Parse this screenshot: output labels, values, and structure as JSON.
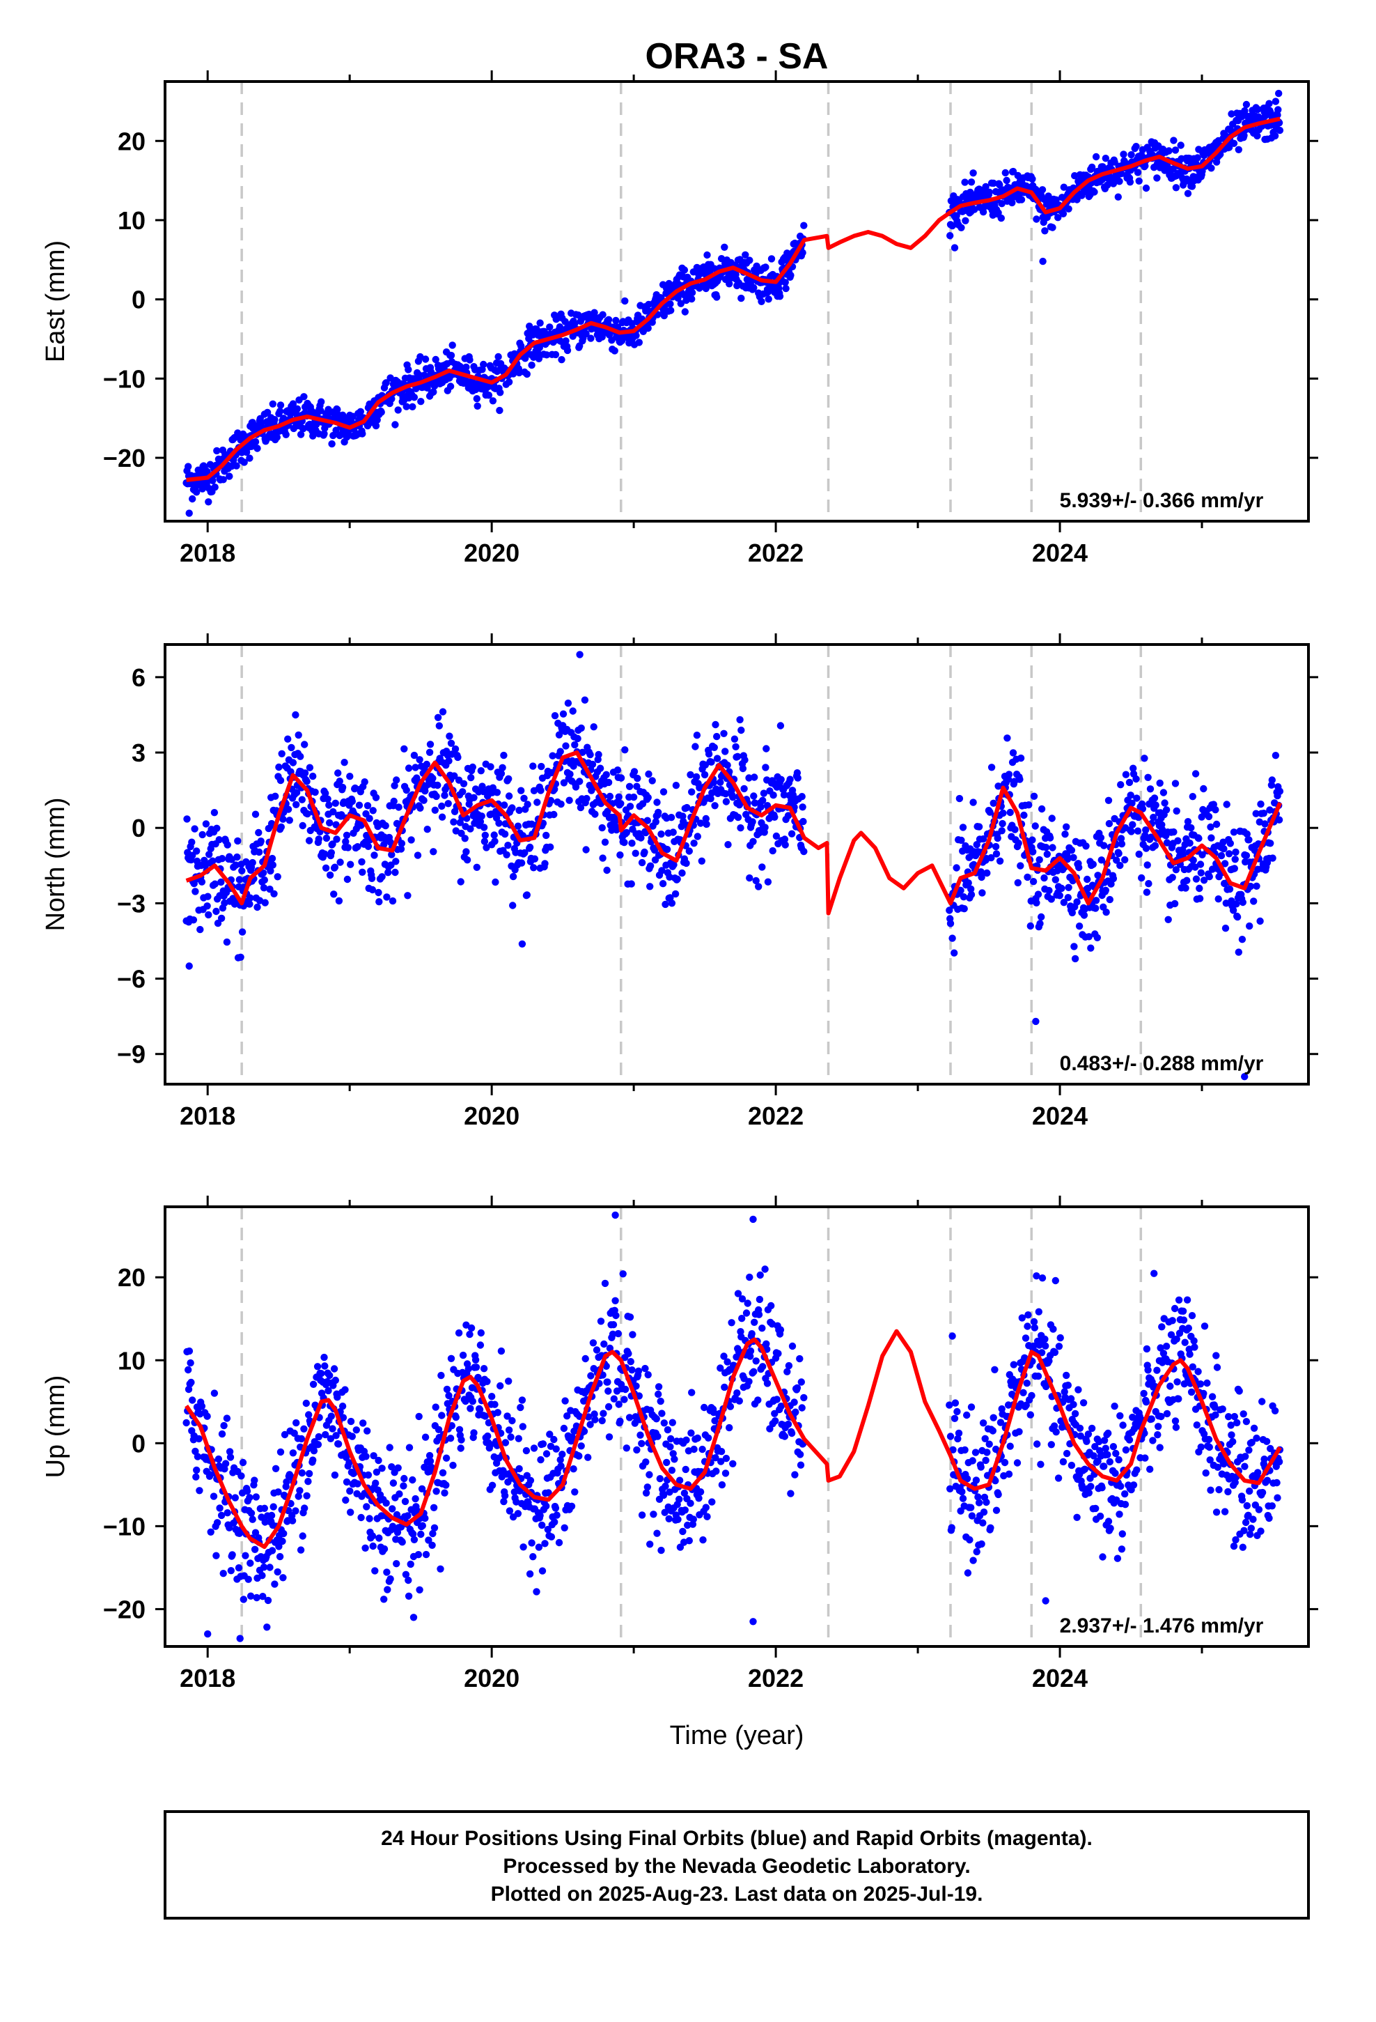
{
  "title": "ORA3 - SA",
  "xlabel": "Time (year)",
  "footer": [
    "24 Hour Positions Using Final Orbits (blue) and Rapid Orbits (magenta).",
    "Processed by the Nevada Geodetic Laboratory.",
    "Plotted on 2025-Aug-23. Last data on 2025-Jul-19."
  ],
  "colors": {
    "points": "#0000ff",
    "model": "#ff0000",
    "steps": "#c8c8c8",
    "axis": "#000000"
  },
  "chart_data": [
    {
      "type": "scatter",
      "ylabel": "East (mm)",
      "rate_label": "5.939+/- 0.366 mm/yr",
      "xlim": [
        2017.7,
        2025.75
      ],
      "ylim": [
        -28,
        27.5
      ],
      "xticks": [
        2018,
        2020,
        2022,
        2024
      ],
      "yticks": [
        -20,
        -10,
        0,
        10,
        20
      ],
      "grid": false,
      "step_epochs": [
        2018.24,
        2020.91,
        2022.37,
        2023.23,
        2023.8,
        2024.57
      ],
      "data_span": [
        2017.85,
        2025.55
      ],
      "gap": [
        2022.2,
        2023.22
      ],
      "model": [
        [
          2017.85,
          -22.8
        ],
        [
          2018.0,
          -22.5
        ],
        [
          2018.1,
          -21.0
        ],
        [
          2018.2,
          -19.0
        ],
        [
          2018.3,
          -17.5
        ],
        [
          2018.4,
          -16.5
        ],
        [
          2018.5,
          -16.0
        ],
        [
          2018.6,
          -15.2
        ],
        [
          2018.7,
          -14.8
        ],
        [
          2018.8,
          -15.2
        ],
        [
          2018.9,
          -15.6
        ],
        [
          2019.0,
          -16.2
        ],
        [
          2019.1,
          -15.4
        ],
        [
          2019.2,
          -13.0
        ],
        [
          2019.3,
          -11.8
        ],
        [
          2019.4,
          -11.0
        ],
        [
          2019.5,
          -10.5
        ],
        [
          2019.6,
          -9.8
        ],
        [
          2019.7,
          -9.0
        ],
        [
          2019.8,
          -9.5
        ],
        [
          2019.9,
          -10.0
        ],
        [
          2020.0,
          -10.5
        ],
        [
          2020.1,
          -9.5
        ],
        [
          2020.2,
          -7.0
        ],
        [
          2020.3,
          -5.5
        ],
        [
          2020.4,
          -5.0
        ],
        [
          2020.5,
          -4.5
        ],
        [
          2020.6,
          -3.8
        ],
        [
          2020.7,
          -3.0
        ],
        [
          2020.8,
          -3.5
        ],
        [
          2020.9,
          -4.2
        ],
        [
          2021.0,
          -4.0
        ],
        [
          2021.1,
          -2.5
        ],
        [
          2021.2,
          -0.5
        ],
        [
          2021.3,
          1.0
        ],
        [
          2021.4,
          2.0
        ],
        [
          2021.5,
          2.5
        ],
        [
          2021.6,
          3.5
        ],
        [
          2021.7,
          4.0
        ],
        [
          2021.8,
          3.2
        ],
        [
          2021.9,
          2.4
        ],
        [
          2022.0,
          2.2
        ],
        [
          2022.1,
          4.5
        ],
        [
          2022.2,
          7.5
        ],
        [
          2022.36,
          8.0
        ],
        [
          2022.37,
          6.5
        ],
        [
          2022.45,
          7.2
        ],
        [
          2022.55,
          8.0
        ],
        [
          2022.65,
          8.5
        ],
        [
          2022.75,
          8.0
        ],
        [
          2022.85,
          7.0
        ],
        [
          2022.95,
          6.5
        ],
        [
          2023.05,
          8.0
        ],
        [
          2023.15,
          10.0
        ],
        [
          2023.23,
          11.0
        ],
        [
          2023.3,
          11.8
        ],
        [
          2023.4,
          12.2
        ],
        [
          2023.5,
          12.5
        ],
        [
          2023.6,
          13.0
        ],
        [
          2023.7,
          14.0
        ],
        [
          2023.8,
          13.5
        ],
        [
          2023.9,
          11.0
        ],
        [
          2024.0,
          11.5
        ],
        [
          2024.1,
          13.5
        ],
        [
          2024.2,
          15.0
        ],
        [
          2024.3,
          15.8
        ],
        [
          2024.4,
          16.3
        ],
        [
          2024.5,
          16.8
        ],
        [
          2024.6,
          17.5
        ],
        [
          2024.7,
          18.0
        ],
        [
          2024.8,
          17.2
        ],
        [
          2024.9,
          16.5
        ],
        [
          2025.0,
          16.8
        ],
        [
          2025.1,
          18.5
        ],
        [
          2025.2,
          20.5
        ],
        [
          2025.3,
          21.7
        ],
        [
          2025.4,
          22.2
        ],
        [
          2025.55,
          22.8
        ]
      ],
      "noise": 1.2,
      "outliers": [
        [
          2017.87,
          -27.0
        ],
        [
          2023.88,
          4.8
        ],
        [
          2025.54,
          26.0
        ]
      ]
    },
    {
      "type": "scatter",
      "ylabel": "North (mm)",
      "rate_label": "0.483+/- 0.288 mm/yr",
      "xlim": [
        2017.7,
        2025.75
      ],
      "ylim": [
        -10.2,
        7.3
      ],
      "xticks": [
        2018,
        2020,
        2022,
        2024
      ],
      "yticks": [
        -9,
        -6,
        -3,
        0,
        3,
        6
      ],
      "grid": false,
      "step_epochs": [
        2018.24,
        2020.91,
        2022.37,
        2023.23,
        2023.8,
        2024.57
      ],
      "data_span": [
        2017.85,
        2025.55
      ],
      "gap": [
        2022.2,
        2023.22
      ],
      "model": [
        [
          2017.85,
          -2.1
        ],
        [
          2017.95,
          -1.9
        ],
        [
          2018.05,
          -1.5
        ],
        [
          2018.15,
          -2.2
        ],
        [
          2018.24,
          -3.0
        ],
        [
          2018.3,
          -2.0
        ],
        [
          2018.4,
          -1.5
        ],
        [
          2018.5,
          0.5
        ],
        [
          2018.6,
          2.1
        ],
        [
          2018.7,
          1.5
        ],
        [
          2018.8,
          0.0
        ],
        [
          2018.9,
          -0.2
        ],
        [
          2019.0,
          0.5
        ],
        [
          2019.1,
          0.3
        ],
        [
          2019.2,
          -0.8
        ],
        [
          2019.3,
          -0.9
        ],
        [
          2019.4,
          0.5
        ],
        [
          2019.5,
          1.8
        ],
        [
          2019.6,
          2.6
        ],
        [
          2019.7,
          1.8
        ],
        [
          2019.8,
          0.5
        ],
        [
          2019.9,
          0.9
        ],
        [
          2020.0,
          1.1
        ],
        [
          2020.1,
          0.5
        ],
        [
          2020.2,
          -0.5
        ],
        [
          2020.3,
          -0.4
        ],
        [
          2020.4,
          1.4
        ],
        [
          2020.5,
          2.8
        ],
        [
          2020.6,
          3.0
        ],
        [
          2020.7,
          2.0
        ],
        [
          2020.8,
          1.0
        ],
        [
          2020.9,
          0.5
        ],
        [
          2020.91,
          -0.1
        ],
        [
          2021.0,
          0.5
        ],
        [
          2021.1,
          0.0
        ],
        [
          2021.2,
          -1.0
        ],
        [
          2021.3,
          -1.3
        ],
        [
          2021.4,
          0.2
        ],
        [
          2021.5,
          1.6
        ],
        [
          2021.6,
          2.5
        ],
        [
          2021.7,
          1.8
        ],
        [
          2021.8,
          0.8
        ],
        [
          2021.9,
          0.5
        ],
        [
          2022.0,
          0.9
        ],
        [
          2022.1,
          0.8
        ],
        [
          2022.2,
          -0.4
        ],
        [
          2022.3,
          -0.8
        ],
        [
          2022.36,
          -0.6
        ],
        [
          2022.37,
          -3.4
        ],
        [
          2022.45,
          -2.0
        ],
        [
          2022.55,
          -0.5
        ],
        [
          2022.6,
          -0.2
        ],
        [
          2022.7,
          -0.8
        ],
        [
          2022.8,
          -2.0
        ],
        [
          2022.9,
          -2.4
        ],
        [
          2023.0,
          -1.8
        ],
        [
          2023.1,
          -1.5
        ],
        [
          2023.23,
          -3.0
        ],
        [
          2023.3,
          -2.0
        ],
        [
          2023.4,
          -1.8
        ],
        [
          2023.5,
          -0.5
        ],
        [
          2023.6,
          1.6
        ],
        [
          2023.7,
          0.6
        ],
        [
          2023.8,
          -1.6
        ],
        [
          2023.9,
          -1.7
        ],
        [
          2024.0,
          -1.2
        ],
        [
          2024.1,
          -1.8
        ],
        [
          2024.2,
          -3.0
        ],
        [
          2024.3,
          -2.0
        ],
        [
          2024.4,
          -0.2
        ],
        [
          2024.5,
          0.8
        ],
        [
          2024.57,
          0.6
        ],
        [
          2024.7,
          -0.5
        ],
        [
          2024.8,
          -1.4
        ],
        [
          2024.9,
          -1.2
        ],
        [
          2025.0,
          -0.7
        ],
        [
          2025.1,
          -1.2
        ],
        [
          2025.2,
          -2.2
        ],
        [
          2025.3,
          -2.4
        ],
        [
          2025.4,
          -1.0
        ],
        [
          2025.55,
          1.0
        ]
      ],
      "noise": 1.1,
      "outliers": [
        [
          2017.87,
          -5.5
        ],
        [
          2020.62,
          6.9
        ],
        [
          2023.83,
          -7.7
        ],
        [
          2025.3,
          -9.9
        ]
      ]
    },
    {
      "type": "scatter",
      "ylabel": "Up (mm)",
      "rate_label": "2.937+/- 1.476 mm/yr",
      "xlim": [
        2017.7,
        2025.75
      ],
      "ylim": [
        -24.5,
        28.5
      ],
      "xticks": [
        2018,
        2020,
        2022,
        2024
      ],
      "yticks": [
        -20,
        -10,
        0,
        10,
        20
      ],
      "grid": false,
      "step_epochs": [
        2018.24,
        2020.91,
        2022.37,
        2023.23,
        2023.8,
        2024.57
      ],
      "data_span": [
        2017.85,
        2025.55
      ],
      "gap": [
        2022.2,
        2023.22
      ],
      "model": [
        [
          2017.85,
          4.5
        ],
        [
          2017.95,
          2.0
        ],
        [
          2018.05,
          -3.0
        ],
        [
          2018.15,
          -7.0
        ],
        [
          2018.24,
          -10.0
        ],
        [
          2018.3,
          -11.5
        ],
        [
          2018.4,
          -12.5
        ],
        [
          2018.5,
          -10.0
        ],
        [
          2018.6,
          -5.0
        ],
        [
          2018.7,
          0.5
        ],
        [
          2018.8,
          5.0
        ],
        [
          2018.85,
          5.2
        ],
        [
          2018.9,
          4.0
        ],
        [
          2019.0,
          -1.0
        ],
        [
          2019.1,
          -5.0
        ],
        [
          2019.2,
          -7.5
        ],
        [
          2019.3,
          -9.0
        ],
        [
          2019.4,
          -9.8
        ],
        [
          2019.5,
          -8.5
        ],
        [
          2019.6,
          -3.5
        ],
        [
          2019.7,
          3.0
        ],
        [
          2019.8,
          7.5
        ],
        [
          2019.85,
          8.0
        ],
        [
          2019.9,
          7.0
        ],
        [
          2020.0,
          3.0
        ],
        [
          2020.1,
          -2.0
        ],
        [
          2020.2,
          -5.0
        ],
        [
          2020.3,
          -6.5
        ],
        [
          2020.4,
          -6.8
        ],
        [
          2020.5,
          -5.0
        ],
        [
          2020.6,
          0.5
        ],
        [
          2020.7,
          6.0
        ],
        [
          2020.8,
          10.5
        ],
        [
          2020.85,
          11.0
        ],
        [
          2020.91,
          10.0
        ],
        [
          2021.0,
          6.0
        ],
        [
          2021.1,
          1.0
        ],
        [
          2021.2,
          -3.0
        ],
        [
          2021.3,
          -5.0
        ],
        [
          2021.4,
          -5.5
        ],
        [
          2021.5,
          -3.5
        ],
        [
          2021.6,
          2.0
        ],
        [
          2021.7,
          8.0
        ],
        [
          2021.8,
          12.0
        ],
        [
          2021.85,
          12.5
        ],
        [
          2021.9,
          11.5
        ],
        [
          2022.0,
          7.5
        ],
        [
          2022.1,
          3.5
        ],
        [
          2022.2,
          0.5
        ],
        [
          2022.36,
          -2.5
        ],
        [
          2022.37,
          -4.5
        ],
        [
          2022.45,
          -4.0
        ],
        [
          2022.55,
          -1.0
        ],
        [
          2022.65,
          4.5
        ],
        [
          2022.75,
          10.5
        ],
        [
          2022.85,
          13.5
        ],
        [
          2022.95,
          11.0
        ],
        [
          2023.05,
          5.0
        ],
        [
          2023.15,
          1.5
        ],
        [
          2023.23,
          -1.5
        ],
        [
          2023.3,
          -4.5
        ],
        [
          2023.4,
          -5.5
        ],
        [
          2023.5,
          -5.0
        ],
        [
          2023.6,
          0.0
        ],
        [
          2023.7,
          6.0
        ],
        [
          2023.8,
          11.0
        ],
        [
          2023.85,
          10.5
        ],
        [
          2023.9,
          8.5
        ],
        [
          2024.0,
          4.5
        ],
        [
          2024.1,
          0.0
        ],
        [
          2024.2,
          -2.5
        ],
        [
          2024.3,
          -4.0
        ],
        [
          2024.4,
          -4.5
        ],
        [
          2024.5,
          -2.5
        ],
        [
          2024.57,
          1.5
        ],
        [
          2024.7,
          7.0
        ],
        [
          2024.8,
          9.5
        ],
        [
          2024.85,
          10.0
        ],
        [
          2024.9,
          9.0
        ],
        [
          2025.0,
          5.0
        ],
        [
          2025.1,
          0.5
        ],
        [
          2025.2,
          -2.5
        ],
        [
          2025.3,
          -4.5
        ],
        [
          2025.4,
          -4.8
        ],
        [
          2025.55,
          -0.5
        ]
      ],
      "noise": 4.2,
      "outliers": [
        [
          2018.0,
          -23.0
        ],
        [
          2020.87,
          27.5
        ],
        [
          2021.84,
          27.0
        ],
        [
          2021.84,
          -21.5
        ],
        [
          2023.9,
          -19.0
        ],
        [
          2019.45,
          -21.0
        ]
      ]
    }
  ]
}
